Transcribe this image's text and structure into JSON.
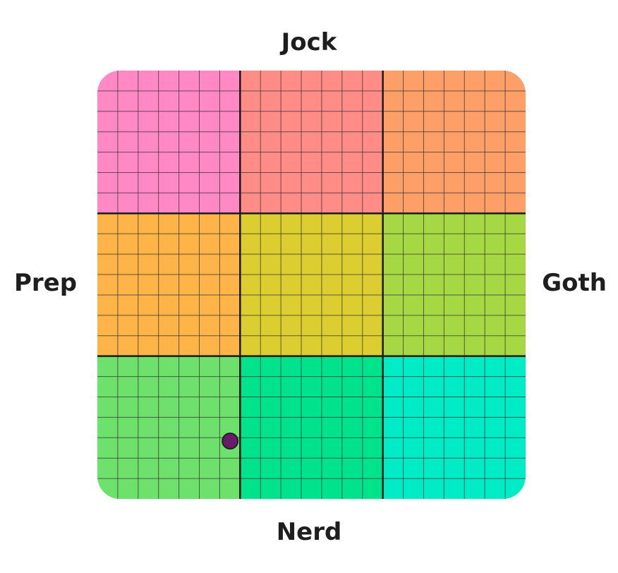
{
  "chart_data": {
    "type": "scatter",
    "axes": {
      "top": "Jock",
      "bottom": "Nerd",
      "left": "Prep",
      "right": "Goth"
    },
    "xlim": [
      -1,
      1
    ],
    "ylim": [
      -1,
      1
    ],
    "grid": true,
    "grid_divisions": 21,
    "zones": [
      {
        "row": 0,
        "col": 0,
        "color": "#ff88c5"
      },
      {
        "row": 0,
        "col": 1,
        "color": "#ff8c87"
      },
      {
        "row": 0,
        "col": 2,
        "color": "#ff9f68"
      },
      {
        "row": 1,
        "col": 0,
        "color": "#ffb447"
      },
      {
        "row": 1,
        "col": 1,
        "color": "#dccd30"
      },
      {
        "row": 1,
        "col": 2,
        "color": "#a6d843"
      },
      {
        "row": 2,
        "col": 0,
        "color": "#6ee16c"
      },
      {
        "row": 2,
        "col": 1,
        "color": "#00e38d"
      },
      {
        "row": 2,
        "col": 2,
        "color": "#00ecc7"
      }
    ],
    "points": [
      {
        "x": -0.38,
        "y": -0.73,
        "color": "#6a1a6a"
      }
    ]
  }
}
